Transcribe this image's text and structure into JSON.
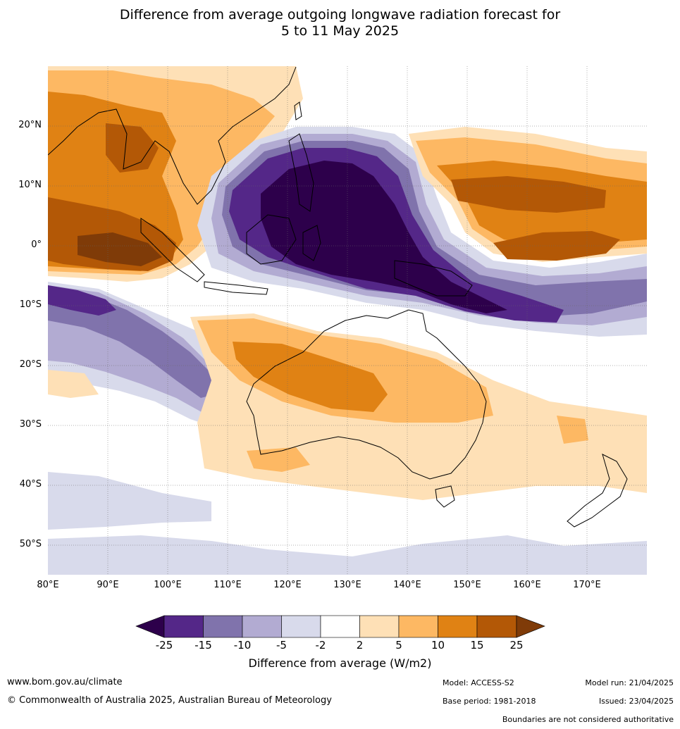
{
  "title": {
    "line1": "Difference from average outgoing longwave radiation forecast for",
    "line2": "5 to 11 May 2025"
  },
  "map": {
    "extent": {
      "lon_min": 80,
      "lon_max": 180,
      "lat_min": -55,
      "lat_max": 30
    },
    "lat_labels": [
      "20°N",
      "10°N",
      "0°",
      "10°S",
      "20°S",
      "30°S",
      "40°S",
      "50°S"
    ],
    "lon_labels": [
      "80°E",
      "90°E",
      "100°E",
      "110°E",
      "120°E",
      "130°E",
      "140°E",
      "150°E",
      "160°E",
      "170°E"
    ],
    "palette": {
      "lt_-25": "#2d004b",
      "-25_-15": "#542788",
      "-15_-10": "#8073ac",
      "-10_-5": "#b2abd2",
      "-5_-2": "#d8daeb",
      "-2_2": "#ffffff",
      "2_5": "#fee0b6",
      "5_10": "#fdb863",
      "10_15": "#e08214",
      "15_25": "#b35806",
      "gt_25": "#7f3b08"
    }
  },
  "colorbar": {
    "ticks": [
      "-25",
      "-15",
      "-10",
      "-5",
      "-2",
      "2",
      "5",
      "10",
      "15",
      "25"
    ],
    "title": "Difference from average (W/m2)"
  },
  "footer": {
    "website": "www.bom.gov.au/climate",
    "copyright": "© Commonwealth of Australia 2025, Australian Bureau of Meteorology",
    "model": "Model: ACCESS-S2",
    "base_period": "Base period: 1981-2018",
    "model_run": "Model run: 21/04/2025",
    "issued": "Issued: 23/04/2025",
    "disclaimer": "Boundaries are not considered authoritative"
  }
}
